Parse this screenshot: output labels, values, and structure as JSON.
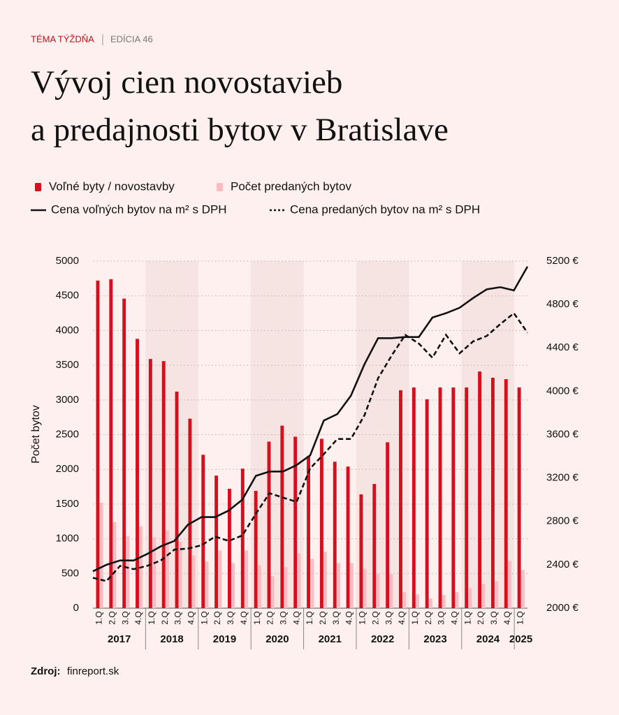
{
  "header": {
    "kicker": "TÉMA TÝŽDŇA",
    "edition": "EDÍCIA 46"
  },
  "chart_data": {
    "type": "bar-line",
    "title": [
      "Vývoj cien novostavieb",
      "a predajnosti bytov v Bratislave"
    ],
    "y_label": "Počet bytov",
    "categories": [
      "1.Q",
      "2.Q",
      "3.Q",
      "4.Q",
      "1.Q",
      "2.Q",
      "3.Q",
      "4.Q",
      "1.Q",
      "2.Q",
      "3.Q",
      "4.Q",
      "1.Q",
      "2.Q",
      "3.Q",
      "4.Q",
      "1.Q",
      "2.Q",
      "3.Q",
      "4.Q",
      "1.Q",
      "2.Q",
      "3.Q",
      "4.Q",
      "1.Q",
      "2.Q",
      "3.Q",
      "4.Q",
      "1.Q",
      "2.Q",
      "3.Q",
      "4.Q",
      "1.Q"
    ],
    "years": [
      "2017",
      "2018",
      "2019",
      "2020",
      "2021",
      "2022",
      "2023",
      "2024",
      "2025"
    ],
    "series": [
      {
        "name": "Voľné byty / novostavby",
        "type": "bar",
        "color": "#d3101e",
        "values": [
          4720,
          4740,
          4460,
          3880,
          3590,
          3560,
          3120,
          2730,
          2210,
          1910,
          1720,
          2010,
          1690,
          2400,
          2630,
          2470,
          2190,
          2440,
          2110,
          2040,
          1640,
          1790,
          2390,
          3140,
          3180,
          3010,
          3180,
          3180,
          3180,
          3410,
          3320,
          3300,
          3180
        ]
      },
      {
        "name": "Počet predaných bytov",
        "type": "bar",
        "color": "#f8bcc2",
        "values": [
          1520,
          1240,
          1040,
          1180,
          1020,
          1120,
          960,
          760,
          670,
          830,
          650,
          830,
          620,
          460,
          590,
          790,
          710,
          810,
          650,
          650,
          570,
          490,
          490,
          230,
          200,
          140,
          190,
          230,
          290,
          350,
          390,
          680,
          550
        ]
      },
      {
        "name": "Cena voľných bytov na m² s DPH",
        "type": "line",
        "axis": "y2",
        "color": "#111111",
        "dashed": false,
        "values": [
          2340,
          2400,
          2440,
          2440,
          2500,
          2570,
          2620,
          2770,
          2840,
          2840,
          2900,
          3000,
          3220,
          3260,
          3260,
          3320,
          3410,
          3730,
          3790,
          3960,
          4250,
          4490,
          4490,
          4500,
          4500,
          4680,
          4720,
          4770,
          4860,
          4940,
          4960,
          4930,
          5150
        ]
      },
      {
        "name": "Cena predaných bytov na m² s DPH",
        "type": "line",
        "axis": "y2",
        "color": "#111111",
        "dashed": true,
        "values": [
          2280,
          2250,
          2390,
          2360,
          2390,
          2440,
          2540,
          2550,
          2580,
          2660,
          2620,
          2670,
          2870,
          3060,
          3020,
          2980,
          3290,
          3420,
          3560,
          3560,
          3780,
          4120,
          4330,
          4520,
          4440,
          4310,
          4520,
          4350,
          4460,
          4510,
          4620,
          4720,
          4540
        ]
      }
    ],
    "ylim": [
      0,
      5000
    ],
    "yticks": [
      0,
      500,
      1000,
      1500,
      2000,
      2500,
      3000,
      3500,
      4000,
      4500,
      5000
    ],
    "y2lim": [
      2000,
      5200
    ],
    "y2ticks": [
      {
        "value": 2000,
        "label": "2000 €"
      },
      {
        "value": 2400,
        "label": "2400 €"
      },
      {
        "value": 2800,
        "label": "2800 €"
      },
      {
        "value": 3200,
        "label": "3200 €"
      },
      {
        "value": 3600,
        "label": "3600 €"
      },
      {
        "value": 4000,
        "label": "4000 €"
      },
      {
        "value": 4400,
        "label": "4400 €"
      },
      {
        "value": 4800,
        "label": "4800 €"
      },
      {
        "value": 5200,
        "label": "5200 €"
      }
    ],
    "grid": true
  },
  "source": {
    "label": "Zdroj:",
    "text": "finreport.sk"
  }
}
